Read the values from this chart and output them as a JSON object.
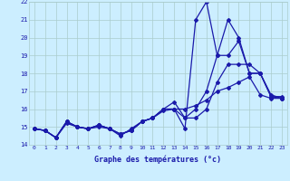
{
  "xlabel": "Graphe des températures (°c)",
  "xlim": [
    -0.5,
    23.5
  ],
  "ylim": [
    14,
    22
  ],
  "yticks": [
    14,
    15,
    16,
    17,
    18,
    19,
    20,
    21,
    22
  ],
  "xticks": [
    0,
    1,
    2,
    3,
    4,
    5,
    6,
    7,
    8,
    9,
    10,
    11,
    12,
    13,
    14,
    15,
    16,
    17,
    18,
    19,
    20,
    21,
    22,
    23
  ],
  "bg_color": "#cceeff",
  "grid_color": "#aacccc",
  "line_color": "#1a1aaa",
  "line_width": 0.9,
  "marker": "D",
  "marker_size": 2.0,
  "series": [
    [
      14.9,
      14.8,
      14.4,
      15.2,
      15.0,
      14.9,
      15.0,
      14.9,
      14.5,
      14.9,
      15.3,
      15.5,
      15.9,
      16.0,
      16.0,
      16.2,
      16.5,
      17.0,
      17.2,
      17.5,
      17.8,
      16.8,
      16.6,
      16.6
    ],
    [
      14.9,
      14.8,
      14.4,
      15.3,
      15.0,
      14.9,
      15.1,
      14.9,
      14.6,
      14.8,
      15.3,
      15.5,
      16.0,
      16.0,
      14.9,
      21.0,
      22.0,
      19.0,
      21.0,
      20.0,
      18.0,
      18.0,
      16.7,
      16.6
    ],
    [
      14.9,
      14.8,
      14.4,
      15.3,
      15.0,
      14.9,
      15.1,
      14.9,
      14.6,
      14.8,
      15.3,
      15.5,
      16.0,
      16.4,
      15.5,
      16.0,
      17.0,
      19.0,
      19.0,
      19.8,
      18.0,
      18.0,
      16.7,
      16.7
    ],
    [
      14.9,
      14.8,
      14.4,
      15.3,
      15.0,
      14.9,
      15.1,
      14.9,
      14.6,
      14.8,
      15.3,
      15.5,
      16.0,
      16.0,
      15.5,
      15.5,
      16.0,
      17.5,
      18.5,
      18.5,
      18.5,
      18.0,
      16.8,
      16.6
    ]
  ]
}
